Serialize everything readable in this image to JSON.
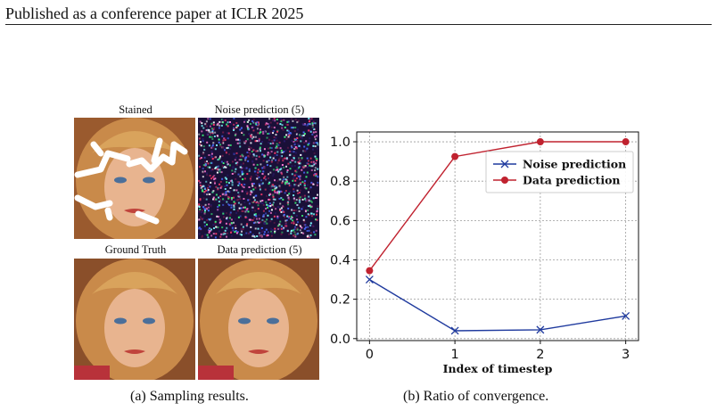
{
  "header": {
    "title": "Published as a conference paper at ICLR 2025"
  },
  "figure_a": {
    "panels": [
      {
        "label": "Stained",
        "kind": "stained"
      },
      {
        "label": "Noise prediction (5)",
        "kind": "noise"
      },
      {
        "label": "Ground Truth",
        "kind": "clean"
      },
      {
        "label": "Data prediction (5)",
        "kind": "clean"
      }
    ],
    "caption": "(a) Sampling results."
  },
  "figure_b": {
    "caption": "(b) Ratio of convergence."
  },
  "chart_data": {
    "type": "line",
    "x": [
      0,
      1,
      2,
      3
    ],
    "xlabel": "Index of timestep",
    "ylabel": "",
    "xticks": [
      "0",
      "1",
      "2",
      "3"
    ],
    "yticks": [
      "0.0",
      "0.2",
      "0.4",
      "0.6",
      "0.8",
      "1.0"
    ],
    "ylim": [
      -0.01,
      1.05
    ],
    "xlim": [
      -0.15,
      3.15
    ],
    "grid": true,
    "legend_position": "top-right",
    "series": [
      {
        "name": "Noise prediction",
        "values": [
          0.3,
          0.04,
          0.045,
          0.115
        ],
        "color": "#1f3a9e",
        "marker": "x"
      },
      {
        "name": "Data prediction",
        "values": [
          0.345,
          0.925,
          1.0,
          1.0
        ],
        "color": "#c0222f",
        "marker": "circle"
      }
    ]
  }
}
